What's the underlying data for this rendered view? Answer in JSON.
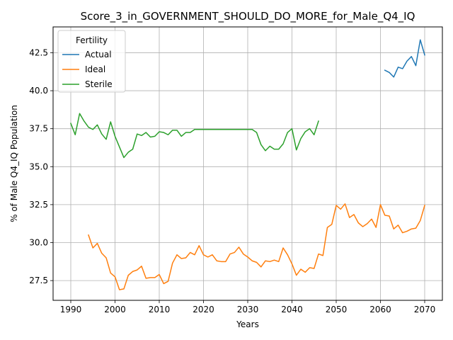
{
  "chart_data": {
    "type": "line",
    "title": "Score_3_in_GOVERNMENT_SHOULD_DO_MORE_for_Male_Q4_IQ",
    "xlabel": "Years",
    "ylabel": "% of Male Q4_IQ Population",
    "xlim": [
      1986.0,
      2074.0
    ],
    "ylim": [
      26.2,
      44.2
    ],
    "xticks": [
      1990,
      2000,
      2010,
      2020,
      2030,
      2040,
      2050,
      2060,
      2070
    ],
    "yticks": [
      27.5,
      30.0,
      32.5,
      35.0,
      37.5,
      40.0,
      42.5
    ],
    "ytick_labels": [
      "27.5",
      "30.0",
      "32.5",
      "35.0",
      "37.5",
      "40.0",
      "42.5"
    ],
    "grid": true,
    "legend": {
      "title": "Fertility",
      "placement": "top-left"
    },
    "series": [
      {
        "name": "Actual",
        "color": "#1f77b4",
        "x": [
          2061,
          2062,
          2063,
          2064,
          2065,
          2066,
          2067,
          2068,
          2069,
          2070
        ],
        "y": [
          41.35,
          41.2,
          40.9,
          41.55,
          41.45,
          41.95,
          42.25,
          41.65,
          43.35,
          42.35
        ]
      },
      {
        "name": "Ideal",
        "color": "#ff7f0e",
        "x": [
          1994,
          1995,
          1996,
          1997,
          1998,
          1999,
          2000,
          2001,
          2002,
          2003,
          2004,
          2005,
          2006,
          2007,
          2008,
          2009,
          2010,
          2011,
          2012,
          2013,
          2014,
          2015,
          2016,
          2017,
          2018,
          2019,
          2020,
          2021,
          2022,
          2023,
          2024,
          2025,
          2026,
          2027,
          2028,
          2029,
          2030,
          2031,
          2032,
          2033,
          2034,
          2035,
          2036,
          2037,
          2038,
          2039,
          2040,
          2041,
          2042,
          2043,
          2044,
          2045,
          2046,
          2047,
          2048,
          2049,
          2050,
          2051,
          2052,
          2053,
          2054,
          2055,
          2056,
          2057,
          2058,
          2059,
          2060,
          2061,
          2062,
          2063,
          2064,
          2065,
          2066,
          2067,
          2068,
          2069,
          2070
        ],
        "y": [
          30.5,
          29.65,
          29.95,
          29.3,
          29.0,
          28.0,
          27.75,
          26.9,
          26.95,
          27.85,
          28.1,
          28.2,
          28.45,
          27.65,
          27.7,
          27.7,
          27.9,
          27.3,
          27.45,
          28.65,
          29.2,
          28.95,
          29.0,
          29.35,
          29.2,
          29.8,
          29.2,
          29.05,
          29.2,
          28.8,
          28.75,
          28.75,
          29.25,
          29.35,
          29.7,
          29.25,
          29.05,
          28.8,
          28.7,
          28.4,
          28.8,
          28.75,
          28.85,
          28.75,
          29.65,
          29.2,
          28.6,
          27.85,
          28.25,
          28.05,
          28.35,
          28.3,
          29.25,
          29.15,
          31.0,
          31.2,
          32.45,
          32.2,
          32.55,
          31.65,
          31.85,
          31.3,
          31.05,
          31.25,
          31.55,
          31.0,
          32.5,
          31.8,
          31.75,
          30.9,
          31.15,
          30.65,
          30.75,
          30.9,
          30.95,
          31.45,
          32.45
        ]
      },
      {
        "name": "Sterile",
        "color": "#2ca02c",
        "x": [
          1990,
          1991,
          1992,
          1993,
          1994,
          1995,
          1996,
          1997,
          1998,
          1999,
          2000,
          2001,
          2002,
          2003,
          2004,
          2005,
          2006,
          2007,
          2008,
          2009,
          2010,
          2011,
          2012,
          2013,
          2014,
          2015,
          2016,
          2017,
          2018,
          2019,
          2020,
          2021,
          2022,
          2023,
          2024,
          2025,
          2026,
          2027,
          2028,
          2029,
          2030,
          2031,
          2032,
          2033,
          2034,
          2035,
          2036,
          2037,
          2038,
          2039,
          2040,
          2041,
          2042,
          2043,
          2044,
          2045,
          2046
        ],
        "y": [
          37.85,
          37.1,
          38.5,
          38.0,
          37.6,
          37.45,
          37.75,
          37.15,
          36.8,
          37.95,
          37.0,
          36.3,
          35.6,
          35.95,
          36.15,
          37.15,
          37.05,
          37.25,
          36.95,
          37.0,
          37.3,
          37.25,
          37.1,
          37.4,
          37.4,
          37.0,
          37.25,
          37.25,
          37.45,
          37.45,
          37.45,
          37.45,
          37.45,
          37.45,
          37.45,
          37.45,
          37.45,
          37.45,
          37.45,
          37.45,
          37.45,
          37.45,
          37.25,
          36.45,
          36.05,
          36.35,
          36.15,
          36.15,
          36.5,
          37.25,
          37.5,
          36.1,
          36.85,
          37.3,
          37.5,
          37.1,
          38.0
        ]
      }
    ]
  }
}
